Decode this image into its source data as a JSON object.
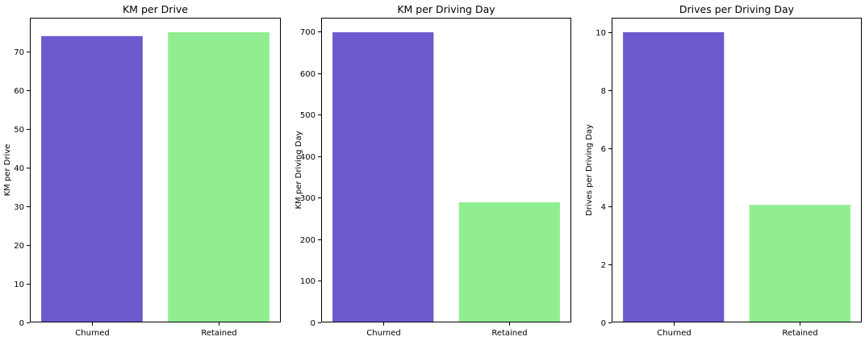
{
  "chart_data": [
    {
      "type": "bar",
      "title": "KM per Drive",
      "xlabel": "",
      "ylabel": "KM per Drive",
      "categories": [
        "Churned",
        "Retained"
      ],
      "values": [
        74,
        75
      ],
      "colors": [
        "#6a5acd",
        "#90ee90"
      ],
      "ylim": [
        0,
        78.75
      ],
      "yticks": [
        0,
        10,
        20,
        30,
        40,
        50,
        60,
        70
      ],
      "grid": false,
      "legend": "none"
    },
    {
      "type": "bar",
      "title": "KM per Driving Day",
      "xlabel": "",
      "ylabel": "KM per Driving Day",
      "categories": [
        "Churned",
        "Retained"
      ],
      "values": [
        698,
        289
      ],
      "colors": [
        "#6a5acd",
        "#90ee90"
      ],
      "ylim": [
        0,
        733
      ],
      "yticks": [
        0,
        100,
        200,
        300,
        400,
        500,
        600,
        700
      ],
      "grid": false,
      "legend": "none"
    },
    {
      "type": "bar",
      "title": "Drives per Driving Day",
      "xlabel": "",
      "ylabel": "Drives per Driving Day",
      "categories": [
        "Churned",
        "Retained"
      ],
      "values": [
        10.0,
        4.05
      ],
      "colors": [
        "#6a5acd",
        "#90ee90"
      ],
      "ylim": [
        0,
        10.5
      ],
      "yticks": [
        0,
        2,
        4,
        6,
        8,
        10
      ],
      "grid": false,
      "legend": "none"
    }
  ]
}
